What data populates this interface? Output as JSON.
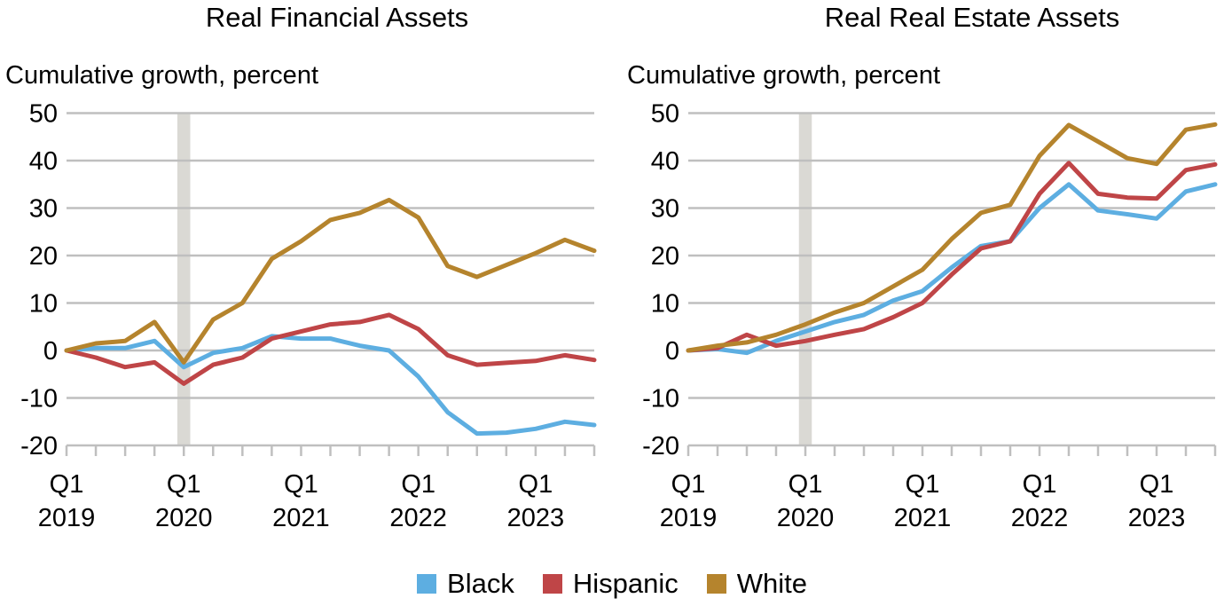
{
  "colors": {
    "Black": "#5DAEE1",
    "Hispanic": "#BF4547",
    "White": "#B5842D",
    "grid": "#BFBFBF",
    "shading": "#DAD9D4"
  },
  "legend": {
    "placement": "bottom-center",
    "items": [
      "Black",
      "Hispanic",
      "White"
    ]
  },
  "chart_data": [
    {
      "type": "line",
      "title": "Real Financial Assets",
      "ylabel": "Cumulative growth, percent",
      "ylim": [
        -20,
        50
      ],
      "yticks": [
        "50",
        "40",
        "30",
        "20",
        "10",
        "0",
        "-10",
        "-20"
      ],
      "grid": true,
      "shaded_quarter": "Q1 2020",
      "x": [
        "Q1 2019",
        "Q2 2019",
        "Q3 2019",
        "Q4 2019",
        "Q1 2020",
        "Q2 2020",
        "Q3 2020",
        "Q4 2020",
        "Q1 2021",
        "Q2 2021",
        "Q3 2021",
        "Q4 2021",
        "Q1 2022",
        "Q2 2022",
        "Q3 2022",
        "Q4 2022",
        "Q1 2023",
        "Q2 2023",
        "Q3 2023"
      ],
      "xtick_labels": [
        {
          "q": "Q1",
          "year": "2019"
        },
        {
          "q": "Q1",
          "year": "2020"
        },
        {
          "q": "Q1",
          "year": "2021"
        },
        {
          "q": "Q1",
          "year": "2022"
        },
        {
          "q": "Q1",
          "year": "2023"
        }
      ],
      "series": [
        {
          "name": "Black",
          "values": [
            0,
            0.5,
            0.5,
            2,
            -3.5,
            -0.5,
            0.5,
            3,
            2.5,
            2.5,
            1,
            0,
            -5.5,
            -13,
            -17.5,
            -17.3,
            -16.5,
            -15,
            -15.7
          ]
        },
        {
          "name": "Hispanic",
          "values": [
            0,
            -1.5,
            -3.5,
            -2.5,
            -7,
            -3,
            -1.5,
            2.5,
            4,
            5.5,
            6,
            7.5,
            4.5,
            -1,
            -3,
            -2.6,
            -2.2,
            -1,
            -2
          ]
        },
        {
          "name": "White",
          "values": [
            0,
            1.5,
            2,
            6,
            -2.5,
            6.5,
            10,
            19.3,
            23,
            27.5,
            29,
            31.7,
            28,
            17.8,
            15.5,
            18,
            20.5,
            23.3,
            21
          ]
        }
      ]
    },
    {
      "type": "line",
      "title": "Real Real Estate Assets",
      "ylabel": "Cumulative growth, percent",
      "ylim": [
        -20,
        50
      ],
      "yticks": [
        "50",
        "40",
        "30",
        "20",
        "10",
        "0",
        "-10",
        "-20"
      ],
      "grid": true,
      "shaded_quarter": "Q1 2020",
      "x": [
        "Q1 2019",
        "Q2 2019",
        "Q3 2019",
        "Q4 2019",
        "Q1 2020",
        "Q2 2020",
        "Q3 2020",
        "Q4 2020",
        "Q1 2021",
        "Q2 2021",
        "Q3 2021",
        "Q4 2021",
        "Q1 2022",
        "Q2 2022",
        "Q3 2022",
        "Q4 2022",
        "Q1 2023",
        "Q2 2023",
        "Q3 2023"
      ],
      "xtick_labels": [
        {
          "q": "Q1",
          "year": "2019"
        },
        {
          "q": "Q1",
          "year": "2020"
        },
        {
          "q": "Q1",
          "year": "2021"
        },
        {
          "q": "Q1",
          "year": "2022"
        },
        {
          "q": "Q1",
          "year": "2023"
        }
      ],
      "series": [
        {
          "name": "Black",
          "values": [
            0,
            0.3,
            -0.5,
            2,
            4,
            6,
            7.5,
            10.5,
            12.5,
            17.5,
            22,
            23,
            30,
            35,
            29.5,
            28.7,
            27.8,
            33.5,
            35
          ]
        },
        {
          "name": "Hispanic",
          "values": [
            0,
            0.5,
            3.3,
            1,
            2,
            3.3,
            4.5,
            7,
            10,
            16,
            21.5,
            23,
            33,
            39.5,
            33,
            32.2,
            32,
            38,
            39.2
          ]
        },
        {
          "name": "White",
          "values": [
            0,
            1,
            1.7,
            3.3,
            5.5,
            8,
            10,
            13.5,
            17,
            23.5,
            29,
            30.7,
            41,
            47.5,
            44,
            40.5,
            39.3,
            46.5,
            47.6
          ]
        }
      ]
    }
  ]
}
